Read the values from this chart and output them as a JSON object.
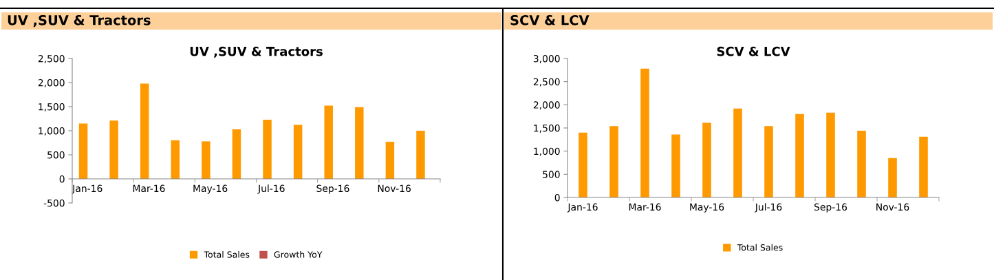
{
  "chart_data": [
    {
      "type": "bar",
      "title": "UV ,SUV & Tractors",
      "annotations": [
        "UV ,SUV & Tractors"
      ],
      "categories": [
        "Jan-16",
        null,
        "Mar-16",
        null,
        "May-16",
        null,
        "Jul-16",
        null,
        "Sep-16",
        null,
        "Nov-16",
        null
      ],
      "series": [
        {
          "name": "Total Sales",
          "color": "#ff9900",
          "values": [
            1150,
            1210,
            1980,
            800,
            780,
            1030,
            1230,
            1120,
            1520,
            1490,
            770,
            1000
          ]
        },
        {
          "name": "Growth YoY",
          "color": "#c0504d",
          "values": [
            null,
            null,
            null,
            null,
            null,
            null,
            null,
            null,
            null,
            null,
            null,
            null
          ]
        }
      ],
      "ylim": [
        -500,
        2500
      ],
      "yticks": [
        {
          "value": -500,
          "label": "-500"
        },
        0,
        500,
        {
          "value": 1000,
          "label": "1,000"
        },
        {
          "value": 1500,
          "label": "1,500"
        },
        {
          "value": 2000,
          "label": "2,000"
        },
        {
          "value": 2500,
          "label": "2,500"
        }
      ],
      "grid": false,
      "legend": "bottom"
    },
    {
      "type": "bar",
      "title": "SCV & LCV",
      "annotations": [
        "SCV & LCV"
      ],
      "categories": [
        "Jan-16",
        null,
        "Mar-16",
        null,
        "May-16",
        null,
        "Jul-16",
        null,
        "Sep-16",
        null,
        "Nov-16",
        null
      ],
      "series": [
        {
          "name": "Total Sales",
          "color": "#ff9900",
          "values": [
            1400,
            1540,
            2780,
            1360,
            1610,
            1920,
            1540,
            1800,
            1830,
            1440,
            850,
            1310
          ]
        }
      ],
      "ylim": [
        0,
        3000
      ],
      "yticks": [
        0,
        500,
        {
          "value": 1000,
          "label": "1,000"
        },
        {
          "value": 1500,
          "label": "1,500"
        },
        {
          "value": 2000,
          "label": "2,000"
        },
        {
          "value": 2500,
          "label": "2,500"
        },
        {
          "value": 3000,
          "label": "3,000"
        }
      ],
      "grid": false,
      "legend": "bottom"
    }
  ]
}
